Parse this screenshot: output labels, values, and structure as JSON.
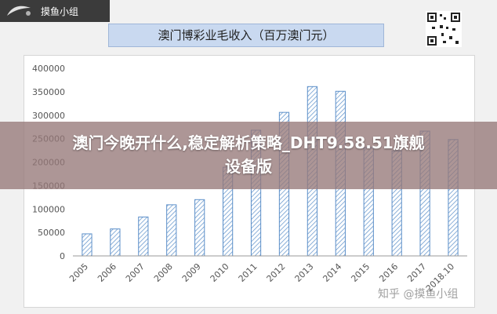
{
  "logo": {
    "text": "摸鱼小组",
    "icon": "logo-swoosh-icon"
  },
  "qr_icon": "qr-code-icon",
  "banner": {
    "headline_line1": "澳门今晚开什么,稳定解析策略_DHT9.58.51旗舰",
    "headline_line2": "设备版"
  },
  "watermark": "知乎 @摸鱼小组",
  "colors": {
    "bar_stroke": "#5b8fc9",
    "bar_hatch": "#5b8fc9",
    "axis": "#999999",
    "title_bg": "#c9d9f0",
    "banner_bg": "#967878"
  },
  "chart_data": {
    "type": "bar",
    "title": "澳门博彩业毛收入（百万澳门元）",
    "xlabel": "",
    "ylabel": "",
    "categories": [
      "2005",
      "2006",
      "2007",
      "2008",
      "2009",
      "2010",
      "2011",
      "2012",
      "2013",
      "2014",
      "2015",
      "2016",
      "2017",
      "2018.10"
    ],
    "values": [
      47000,
      57500,
      83000,
      109000,
      120000,
      189000,
      268000,
      306000,
      361000,
      351000,
      231000,
      224000,
      266000,
      248000
    ],
    "yticks": [
      "0",
      "50000",
      "100000",
      "150000",
      "200000",
      "250000",
      "300000",
      "350000",
      "400000"
    ],
    "ylim": [
      0,
      400000
    ],
    "grid": false,
    "legend": "none"
  }
}
